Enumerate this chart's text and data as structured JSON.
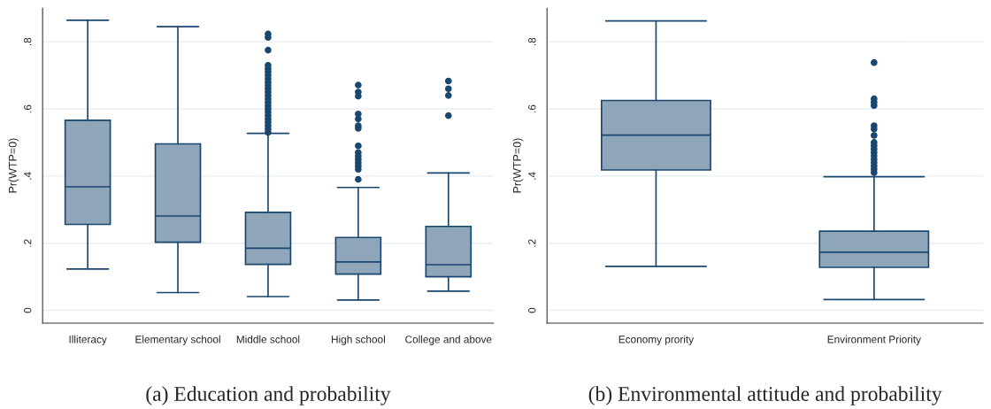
{
  "chart_data": [
    {
      "type": "box",
      "title": "(a) Education and probability",
      "ylabel": "Pr(WTP=0)",
      "categories": [
        "Illiteracy",
        "Elementary school",
        "Middle school",
        "High school",
        "College and above"
      ],
      "boxes": [
        {
          "low": 0.123,
          "q1": 0.256,
          "median": 0.368,
          "q3": 0.566,
          "high": 0.864
        },
        {
          "low": 0.053,
          "q1": 0.203,
          "median": 0.281,
          "q3": 0.496,
          "high": 0.845
        },
        {
          "low": 0.041,
          "q1": 0.137,
          "median": 0.185,
          "q3": 0.292,
          "high": 0.527,
          "outliers": [
            0.53,
            0.54,
            0.55,
            0.56,
            0.57,
            0.58,
            0.59,
            0.6,
            0.61,
            0.62,
            0.63,
            0.64,
            0.65,
            0.66,
            0.67,
            0.68,
            0.69,
            0.7,
            0.71,
            0.72,
            0.73,
            0.775,
            0.813,
            0.823
          ]
        },
        {
          "low": 0.031,
          "q1": 0.108,
          "median": 0.144,
          "q3": 0.217,
          "high": 0.366,
          "outliers": [
            0.39,
            0.42,
            0.43,
            0.44,
            0.45,
            0.46,
            0.47,
            0.49,
            0.542,
            0.55,
            0.57,
            0.585,
            0.638,
            0.65,
            0.671
          ]
        },
        {
          "low": 0.057,
          "q1": 0.1,
          "median": 0.136,
          "q3": 0.25,
          "high": 0.409,
          "outliers": [
            0.58,
            0.64,
            0.66,
            0.683
          ]
        }
      ],
      "color": "#8fa5b9",
      "ylim": [
        -0.038,
        0.9
      ],
      "yticks": [
        {
          "value": 0,
          "label": "0"
        },
        {
          "value": 0.2,
          "label": ".2"
        },
        {
          "value": 0.4,
          "label": ".4"
        },
        {
          "value": 0.6,
          "label": ".6"
        },
        {
          "value": 0.8,
          "label": ".8"
        }
      ],
      "grid": "y",
      "legend": false
    },
    {
      "type": "box",
      "title": "(b) Environmental attitude and probability",
      "ylabel": "Pr(WTP=0)",
      "categories": [
        "Economy prority",
        "Environment Priority"
      ],
      "boxes": [
        {
          "low": 0.131,
          "q1": 0.418,
          "median": 0.522,
          "q3": 0.625,
          "high": 0.862
        },
        {
          "low": 0.032,
          "q1": 0.128,
          "median": 0.173,
          "q3": 0.236,
          "high": 0.398,
          "outliers": [
            0.41,
            0.42,
            0.43,
            0.44,
            0.45,
            0.46,
            0.47,
            0.48,
            0.49,
            0.5,
            0.521,
            0.54,
            0.55,
            0.61,
            0.62,
            0.63,
            0.738
          ]
        }
      ],
      "color": "#8fa5b9",
      "ylim": [
        -0.038,
        0.9
      ],
      "yticks": [
        {
          "value": 0,
          "label": "0"
        },
        {
          "value": 0.2,
          "label": ".2"
        },
        {
          "value": 0.4,
          "label": ".4"
        },
        {
          "value": 0.6,
          "label": ".6"
        },
        {
          "value": 0.8,
          "label": ".8"
        }
      ],
      "grid": "y",
      "legend": false
    }
  ]
}
